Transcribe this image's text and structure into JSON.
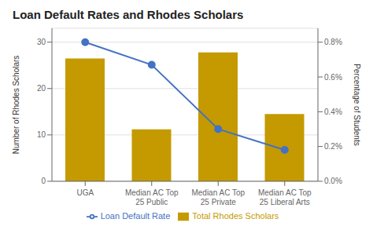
{
  "chart_data": {
    "type": "bar",
    "title": "Loan Default Rates and Rhodes Scholars",
    "categories": [
      "UGA",
      "Median AC Top\n25 Public",
      "Median AC Top\n25 Private",
      "Median AC Top\n25 Liberal Arts"
    ],
    "series": [
      {
        "name": "Total Rhodes Scholars",
        "type": "bar",
        "color": "#C49A00",
        "values": [
          26.5,
          11.2,
          27.8,
          14.5
        ]
      },
      {
        "name": "Loan Default Rate",
        "type": "line",
        "color": "#4472C4",
        "marker": "circle",
        "axis": "y2",
        "values": [
          0.008,
          0.0067,
          0.003,
          0.0018
        ]
      }
    ],
    "ylabel": "Number of Rhodes Scholars",
    "y2label": "Percentage of Students",
    "ylim": [
      0,
      33
    ],
    "yticks": [
      0,
      10,
      20,
      30
    ],
    "y2lim": [
      0,
      0.0088
    ],
    "y2ticks": [
      {
        "value": 0,
        "label": "0.0%"
      },
      {
        "value": 0.002,
        "label": "0.2%"
      },
      {
        "value": 0.004,
        "label": "0.4%"
      },
      {
        "value": 0.006,
        "label": "0.6%"
      },
      {
        "value": 0.008,
        "label": "0.8%"
      }
    ],
    "grid": true,
    "legend": "bottom"
  }
}
